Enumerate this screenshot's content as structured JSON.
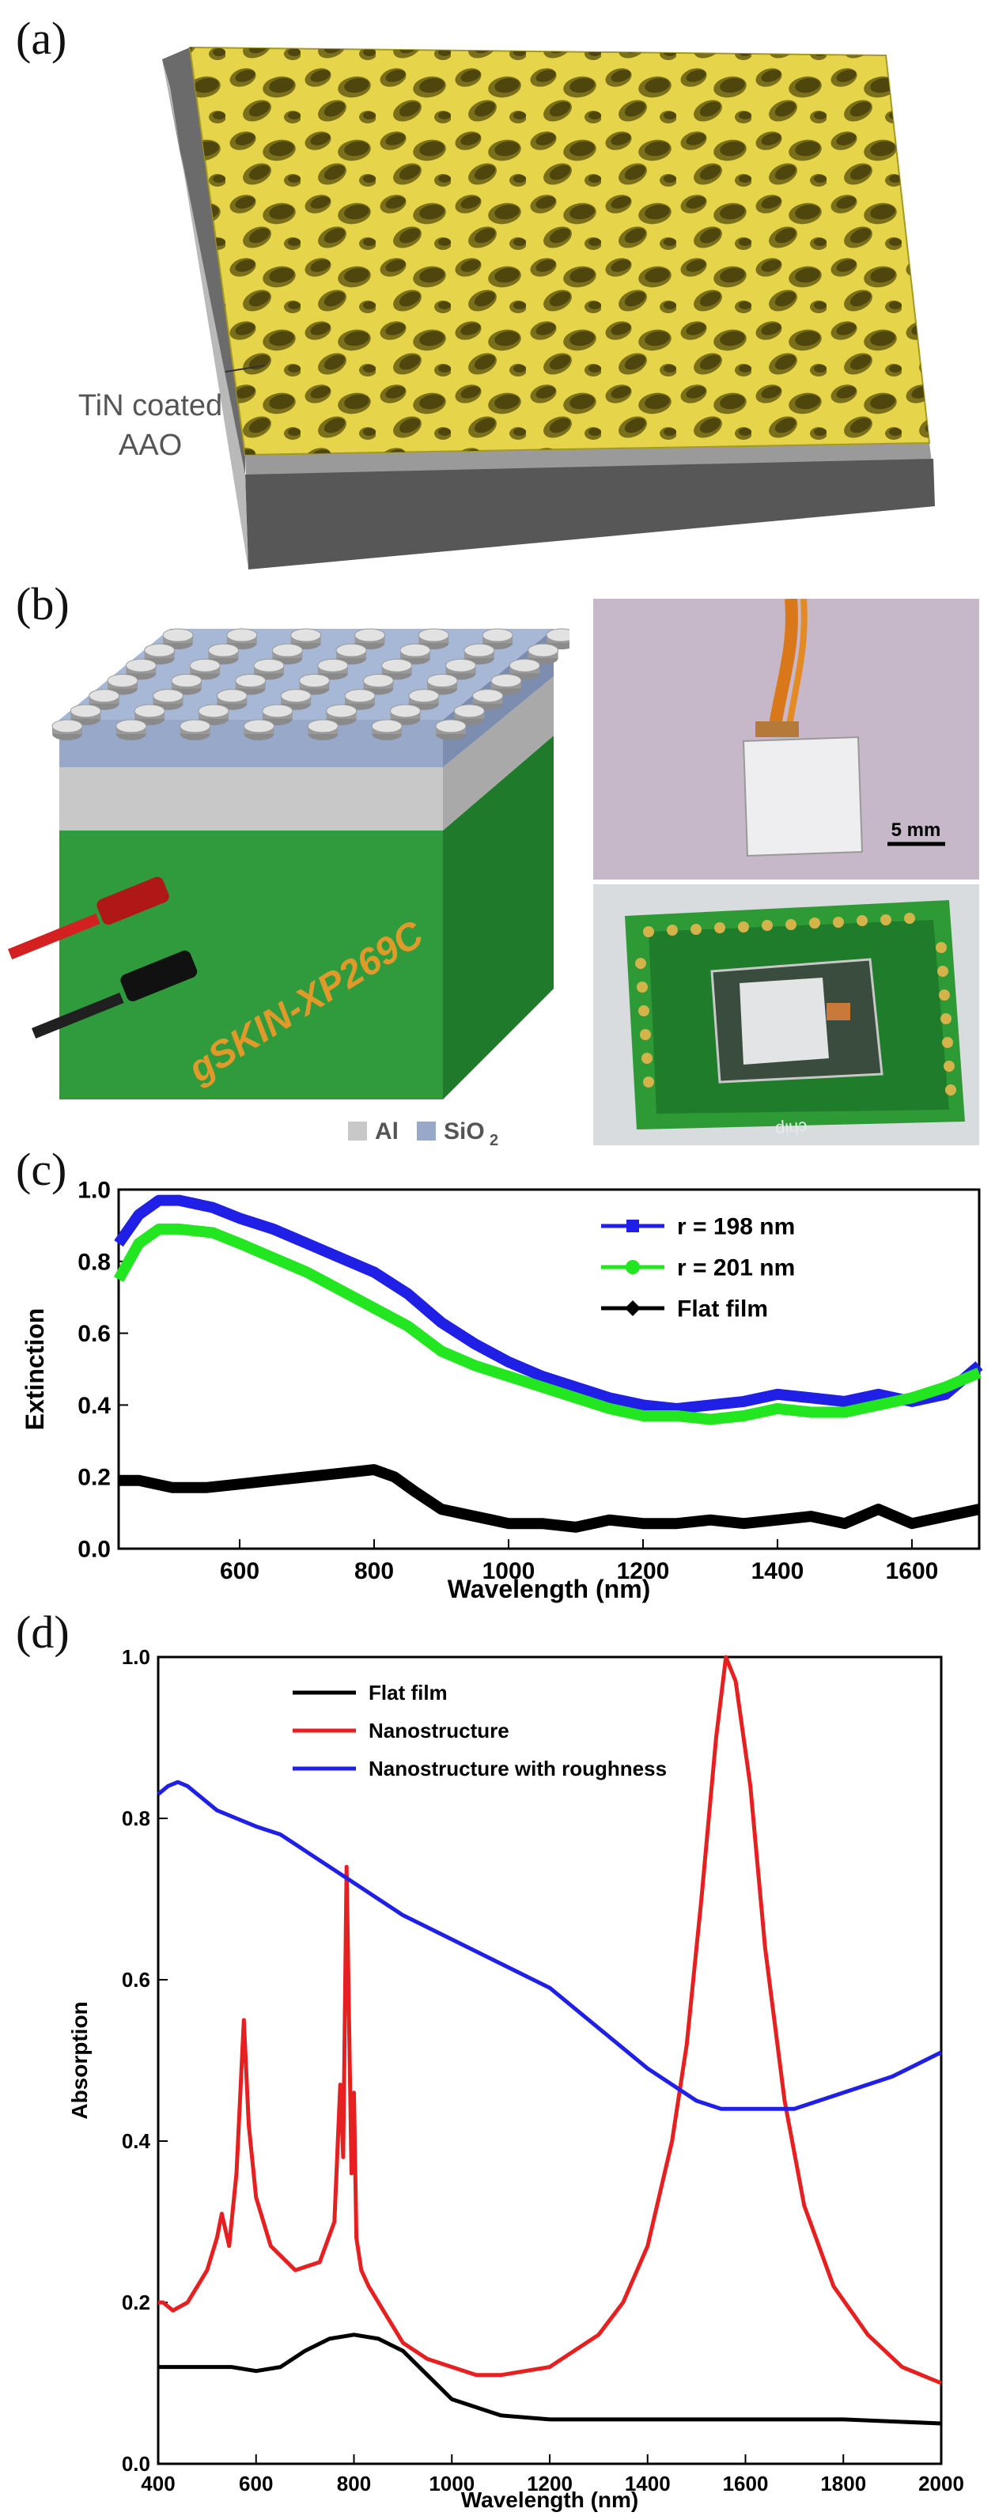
{
  "panels": {
    "a": {
      "letter": "(a)",
      "label_line1": "TiN coated",
      "label_line2": "AAO"
    },
    "b": {
      "letter": "(b)",
      "device_label": "gSKIN-XP269C",
      "legend_al": "Al",
      "legend_sio2": "SiO",
      "legend_sio2_sub": "2",
      "scale_bar": "5 mm",
      "chip_text": "chip"
    },
    "c": {
      "letter": "(c)"
    },
    "d": {
      "letter": "(d)"
    }
  },
  "chart_data": [
    {
      "type": "line",
      "panel": "c",
      "xlabel": "Wavelength (nm)",
      "ylabel": "Extinction",
      "xlim": [
        420,
        1700
      ],
      "ylim": [
        0.0,
        1.0
      ],
      "xticks": [
        600,
        800,
        1000,
        1200,
        1400,
        1600
      ],
      "yticks": [
        0.0,
        0.2,
        0.4,
        0.6,
        0.8,
        1.0
      ],
      "ytick_labels": [
        "0.0",
        "0.2",
        "0.4",
        "0.6",
        "0.8",
        "1.0"
      ],
      "legend_position": "top-right",
      "series": [
        {
          "name": "r = 198 nm",
          "color": "#1f1fe6",
          "marker": "square",
          "x": [
            420,
            450,
            480,
            510,
            560,
            600,
            650,
            700,
            750,
            800,
            850,
            900,
            950,
            1000,
            1050,
            1100,
            1150,
            1200,
            1250,
            1300,
            1350,
            1400,
            1450,
            1500,
            1550,
            1600,
            1650,
            1700
          ],
          "y": [
            0.85,
            0.93,
            0.97,
            0.97,
            0.95,
            0.92,
            0.89,
            0.85,
            0.81,
            0.77,
            0.71,
            0.63,
            0.57,
            0.52,
            0.48,
            0.45,
            0.42,
            0.4,
            0.39,
            0.4,
            0.41,
            0.43,
            0.42,
            0.41,
            0.43,
            0.41,
            0.43,
            0.51
          ]
        },
        {
          "name": "r = 201 nm",
          "color": "#22e61f",
          "marker": "circle",
          "x": [
            420,
            450,
            480,
            510,
            560,
            600,
            650,
            700,
            750,
            800,
            850,
            900,
            950,
            1000,
            1050,
            1100,
            1150,
            1200,
            1250,
            1300,
            1350,
            1400,
            1450,
            1500,
            1550,
            1600,
            1650,
            1700
          ],
          "y": [
            0.75,
            0.85,
            0.89,
            0.89,
            0.88,
            0.85,
            0.81,
            0.77,
            0.72,
            0.67,
            0.62,
            0.55,
            0.51,
            0.48,
            0.45,
            0.42,
            0.39,
            0.37,
            0.37,
            0.36,
            0.37,
            0.39,
            0.38,
            0.38,
            0.4,
            0.42,
            0.45,
            0.49
          ]
        },
        {
          "name": "Flat film",
          "color": "#000000",
          "marker": "diamond",
          "x": [
            420,
            450,
            500,
            550,
            600,
            650,
            700,
            750,
            800,
            830,
            860,
            900,
            950,
            1000,
            1050,
            1100,
            1150,
            1200,
            1250,
            1300,
            1350,
            1400,
            1450,
            1500,
            1550,
            1600,
            1650,
            1700
          ],
          "y": [
            0.19,
            0.19,
            0.17,
            0.17,
            0.18,
            0.19,
            0.2,
            0.21,
            0.22,
            0.2,
            0.16,
            0.11,
            0.09,
            0.07,
            0.07,
            0.06,
            0.08,
            0.07,
            0.07,
            0.08,
            0.07,
            0.08,
            0.09,
            0.07,
            0.11,
            0.07,
            0.09,
            0.11
          ]
        }
      ]
    },
    {
      "type": "line",
      "panel": "d",
      "xlabel": "Wavelength (nm)",
      "ylabel": "Absorption",
      "xlim": [
        400,
        2000
      ],
      "ylim": [
        0.0,
        1.0
      ],
      "xticks": [
        400,
        600,
        800,
        1000,
        1200,
        1400,
        1600,
        1800,
        2000
      ],
      "yticks": [
        0.0,
        0.2,
        0.4,
        0.6,
        0.8,
        1.0
      ],
      "ytick_labels": [
        "0.0",
        "0.2",
        "0.4",
        "0.6",
        "0.8",
        "1.0"
      ],
      "legend_position": "top-left",
      "series": [
        {
          "name": "Flat film",
          "color": "#000000",
          "x": [
            400,
            450,
            500,
            550,
            600,
            650,
            700,
            750,
            800,
            850,
            900,
            950,
            1000,
            1100,
            1200,
            1400,
            1600,
            1800,
            2000
          ],
          "y": [
            0.12,
            0.12,
            0.12,
            0.12,
            0.115,
            0.12,
            0.14,
            0.155,
            0.16,
            0.155,
            0.14,
            0.11,
            0.08,
            0.06,
            0.055,
            0.055,
            0.055,
            0.055,
            0.05
          ]
        },
        {
          "name": "Nanostructure",
          "color": "#e62020",
          "x": [
            400,
            410,
            430,
            460,
            500,
            520,
            530,
            545,
            560,
            575,
            585,
            600,
            630,
            680,
            730,
            760,
            772,
            778,
            785,
            790,
            795,
            800,
            805,
            815,
            830,
            860,
            900,
            950,
            1000,
            1050,
            1100,
            1150,
            1200,
            1250,
            1300,
            1350,
            1400,
            1450,
            1480,
            1510,
            1540,
            1560,
            1580,
            1610,
            1640,
            1680,
            1720,
            1780,
            1850,
            1920,
            2000
          ],
          "y": [
            0.2,
            0.2,
            0.19,
            0.2,
            0.24,
            0.28,
            0.31,
            0.27,
            0.36,
            0.55,
            0.42,
            0.33,
            0.27,
            0.24,
            0.25,
            0.3,
            0.47,
            0.38,
            0.74,
            0.55,
            0.36,
            0.46,
            0.28,
            0.24,
            0.22,
            0.19,
            0.15,
            0.13,
            0.12,
            0.11,
            0.11,
            0.115,
            0.12,
            0.14,
            0.16,
            0.2,
            0.27,
            0.4,
            0.52,
            0.7,
            0.9,
            1.0,
            0.97,
            0.84,
            0.64,
            0.45,
            0.32,
            0.22,
            0.16,
            0.12,
            0.1
          ]
        },
        {
          "name": "Nanostructure with roughness",
          "color": "#1f1fe6",
          "x": [
            400,
            420,
            440,
            460,
            480,
            520,
            560,
            600,
            650,
            700,
            800,
            900,
            1000,
            1100,
            1200,
            1300,
            1400,
            1500,
            1550,
            1600,
            1700,
            1800,
            1900,
            2000
          ],
          "y": [
            0.83,
            0.84,
            0.845,
            0.84,
            0.83,
            0.81,
            0.8,
            0.79,
            0.78,
            0.76,
            0.72,
            0.68,
            0.65,
            0.62,
            0.59,
            0.54,
            0.49,
            0.45,
            0.44,
            0.44,
            0.44,
            0.46,
            0.48,
            0.51
          ]
        }
      ]
    }
  ]
}
